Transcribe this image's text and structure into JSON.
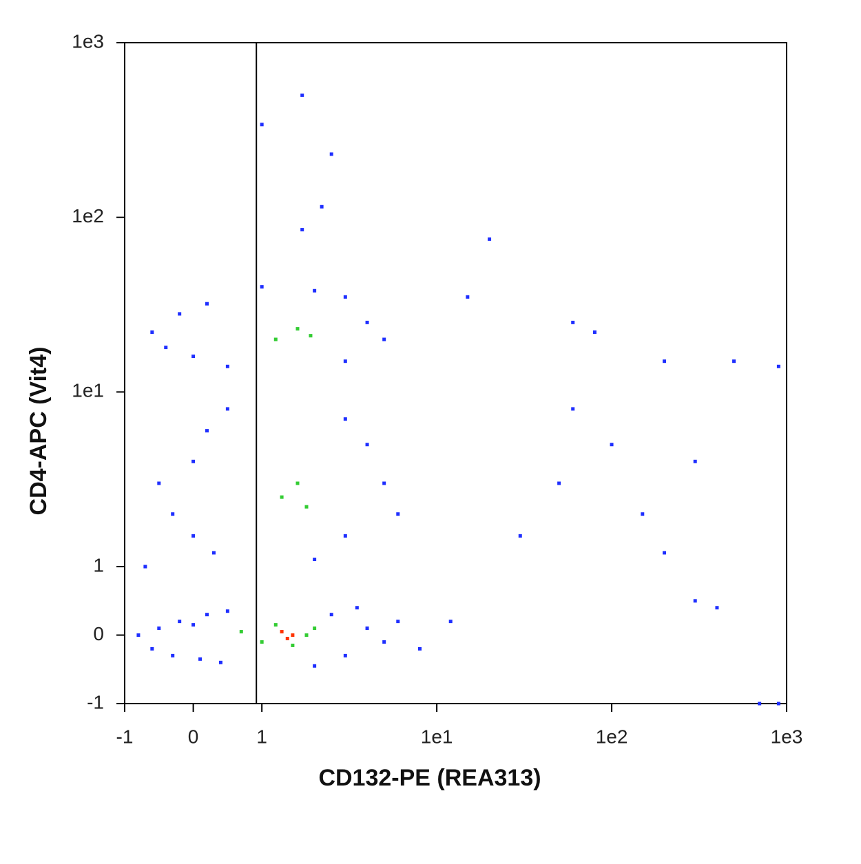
{
  "chart_data": {
    "type": "scatter",
    "x_label": "CD132-PE (REA313)",
    "y_label": "CD4-APC (Vit4)",
    "xscale": "biexponential",
    "yscale": "biexponential",
    "xlim": [
      -1,
      1000
    ],
    "ylim": [
      -1,
      1000
    ],
    "xticks": [
      -1,
      0,
      1,
      {
        "value": 10,
        "label": "1e1"
      },
      {
        "value": 100,
        "label": "1e2"
      },
      {
        "value": 1000,
        "label": "1e3"
      }
    ],
    "yticks": [
      -1,
      0,
      1,
      {
        "value": 10,
        "label": "1e1"
      },
      {
        "value": 100,
        "label": "1e2"
      },
      {
        "value": 1000,
        "label": "1e3"
      }
    ],
    "gate_x": 0.92,
    "series": [
      {
        "color": "#1f2fff",
        "x": [
          -0.8,
          -0.6,
          -0.5,
          -0.3,
          -0.2,
          0,
          0.1,
          0.2,
          0.4,
          0.5,
          2.5,
          3,
          4,
          5,
          6,
          8,
          3.5,
          2,
          -0.5,
          -0.3,
          0,
          0,
          0.2,
          0.3,
          0.5,
          3,
          4,
          5,
          6,
          3,
          -0.7,
          2,
          -0.6,
          -0.4,
          -0.2,
          0,
          0.2,
          0.5,
          3,
          4,
          5,
          2,
          1,
          3,
          1.7,
          1,
          2.5,
          2.2,
          1.7,
          20,
          15,
          60,
          80,
          200,
          500,
          900,
          60,
          100,
          300,
          50,
          150,
          200,
          300,
          400,
          12,
          30,
          700,
          900
        ],
        "y": [
          0,
          -0.2,
          0.1,
          -0.3,
          0.2,
          0.15,
          -0.35,
          0.3,
          -0.4,
          0.35,
          0.3,
          -0.3,
          0.1,
          -0.1,
          0.2,
          -0.2,
          0.4,
          -0.45,
          3,
          2,
          1.5,
          4,
          6,
          1.2,
          8,
          1.5,
          5,
          3,
          2,
          7,
          1,
          1.1,
          22,
          18,
          28,
          16,
          32,
          14,
          15,
          25,
          20,
          38,
          40,
          35,
          500,
          340,
          230,
          115,
          85,
          75,
          35,
          25,
          22,
          15,
          15,
          14,
          8,
          5,
          4,
          3,
          2,
          1.2,
          0.5,
          0.4,
          0.2,
          1.5,
          -1,
          -1
        ]
      },
      {
        "color": "#33cc33",
        "x": [
          0.7,
          1,
          1.2,
          1.8,
          2,
          1.5,
          1.3,
          1.6,
          1.8,
          1.2,
          1.6,
          1.9
        ],
        "y": [
          0.05,
          -0.1,
          0.15,
          0,
          0.1,
          -0.15,
          2.5,
          3,
          2.2,
          20,
          23,
          21
        ]
      },
      {
        "color": "#ff3300",
        "x": [
          1.3,
          1.5,
          1.4
        ],
        "y": [
          0.05,
          0,
          -0.05
        ]
      }
    ]
  }
}
